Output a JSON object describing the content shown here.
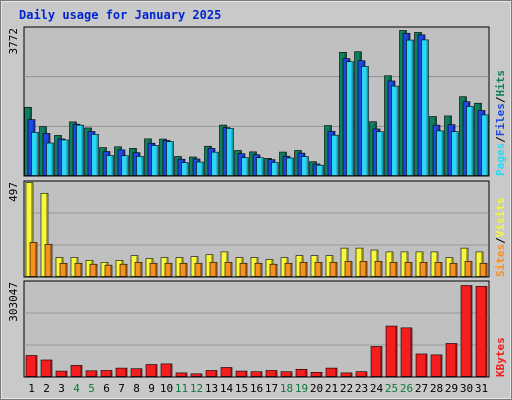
{
  "chart_data": {
    "type": "bar",
    "title": "Daily usage for January 2025",
    "categories": [
      "1",
      "2",
      "3",
      "4",
      "5",
      "6",
      "7",
      "8",
      "9",
      "10",
      "11",
      "12",
      "13",
      "14",
      "15",
      "16",
      "17",
      "18",
      "19",
      "20",
      "21",
      "22",
      "23",
      "24",
      "25",
      "26",
      "27",
      "28",
      "29",
      "30",
      "31"
    ],
    "weekend_days": [
      "4",
      "5",
      "11",
      "12",
      "18",
      "19",
      "25",
      "26"
    ],
    "panels": [
      {
        "name": "hits-files-pages",
        "max_label": "3772",
        "ylim": [
          0,
          3772
        ],
        "grid": true,
        "series": [
          {
            "name": "Hits",
            "color": "#0f7f62",
            "values": [
              1775,
              1270,
              1043,
              1395,
              1237,
              727,
              747,
              707,
              953,
              948,
              495,
              482,
              762,
              1312,
              650,
              615,
              447,
              610,
              650,
              360,
              1300,
              3205,
              3220,
              1400,
              2595,
              3772,
              3722,
              1535,
              1550,
              2050,
              1880
            ]
          },
          {
            "name": "Files",
            "color": "#1c49e0",
            "values": [
              1455,
              1095,
              950,
              1335,
              1145,
              624,
              667,
              595,
              840,
              911,
              425,
              430,
              705,
              1245,
              568,
              540,
              412,
              502,
              583,
              301,
              1150,
              3040,
              2986,
              1210,
              2460,
              3700,
              3660,
              1310,
              1323,
              1920,
              1692
            ]
          },
          {
            "name": "Pages",
            "color": "#2ad8f5",
            "values": [
              1121,
              845,
              925,
              1310,
              1070,
              520,
              513,
              497,
              780,
              880,
              335,
              350,
              607,
              1225,
              463,
              462,
              338,
              455,
              490,
              268,
              1050,
              2960,
              2836,
              1140,
              2325,
              3522,
              3527,
              1160,
              1140,
              1795,
              1575
            ]
          }
        ]
      },
      {
        "name": "visits-sites",
        "max_label": "497",
        "ylim": [
          0,
          497
        ],
        "grid": true,
        "series": [
          {
            "name": "Visits",
            "color": "#f8f83a",
            "values": [
              497,
              440,
              100,
              100,
              85,
              75,
              85,
              110,
              95,
              100,
              100,
              105,
              115,
              130,
              100,
              100,
              90,
              100,
              110,
              110,
              110,
              150,
              150,
              140,
              130,
              130,
              130,
              130,
              100,
              150,
              130
            ]
          },
          {
            "name": "Sites",
            "color": "#f59120",
            "values": [
              180,
              170,
              70,
              70,
              65,
              60,
              65,
              75,
              70,
              70,
              70,
              70,
              75,
              75,
              70,
              70,
              65,
              70,
              75,
              75,
              75,
              80,
              80,
              80,
              75,
              75,
              75,
              75,
              70,
              80,
              70
            ]
          }
        ]
      },
      {
        "name": "kbytes",
        "max_label": "303047",
        "ylim": [
          0,
          303047
        ],
        "grid": true,
        "series": [
          {
            "name": "KBytes",
            "color": "#f41e1e",
            "values": [
              70000,
              55000,
              18000,
              37000,
              19000,
              20000,
              28000,
              26000,
              40000,
              42000,
              12000,
              9000,
              20000,
              30000,
              18000,
              16000,
              20000,
              16000,
              24000,
              14000,
              28000,
              12000,
              16000,
              100000,
              168000,
              162000,
              75000,
              72000,
              110000,
              303047,
              300000
            ]
          }
        ]
      }
    ]
  },
  "legend": {
    "hits_files_pages": [
      "Pages",
      "Files",
      "Hits"
    ],
    "visits_sites": [
      "Sites",
      "Visits"
    ],
    "kbytes": [
      "KBytes"
    ]
  },
  "colors": {
    "title": "#0024d1",
    "plot_bg": "#c0c0c0",
    "frame": "#c9c9c9",
    "day_normal": "#000000",
    "day_weekend": "#0b7a3a"
  }
}
